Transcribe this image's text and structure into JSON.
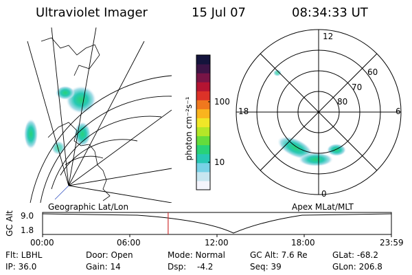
{
  "header": {
    "instrument": "Ultraviolet Imager",
    "date": "15 Jul 07",
    "time": "08:34:33 UT"
  },
  "left_panel": {
    "label": "Geographic Lat/Lon",
    "aurora_color": "#20c8b0"
  },
  "right_panel": {
    "label": "Apex MLat/MLT",
    "clock_labels": [
      "12",
      "18",
      "6",
      "0"
    ],
    "lat_labels": [
      "60",
      "70",
      "80"
    ]
  },
  "colorbar": {
    "unit_label": "photon cm⁻²s⁻¹",
    "tick_labels": [
      "100",
      "10"
    ],
    "scale": "log",
    "colors": [
      "#f4f4fc",
      "#c8e6f0",
      "#78d2e6",
      "#28c8b4",
      "#28d278",
      "#64dc3c",
      "#b4e628",
      "#f0e628",
      "#fab41e",
      "#f0781e",
      "#dc3228",
      "#b41432",
      "#781446",
      "#3c1446",
      "#14143c"
    ]
  },
  "altitude_strip": {
    "ylabel": "GC Alt",
    "y_ticks": [
      "9.0",
      "1.8"
    ],
    "x_ticks": [
      "00:00",
      "06:00",
      "12:00",
      "18:00",
      "23:59"
    ],
    "current_time_fraction": 0.36,
    "marker_color": "#d03030"
  },
  "info": {
    "flt": "Flt: LBHL",
    "door": "Door: Open",
    "mode": "Mode: Normal",
    "gc_alt": "GC Alt: 7.6 Re",
    "glat": "GLat: -68.2",
    "ip": "IP: 36.0",
    "gain": "Gain: 14",
    "dsp_label": "Dsp:",
    "dsp_value": "-4.2",
    "seq": "Seq: 39",
    "glon": "GLon: 206.8"
  }
}
